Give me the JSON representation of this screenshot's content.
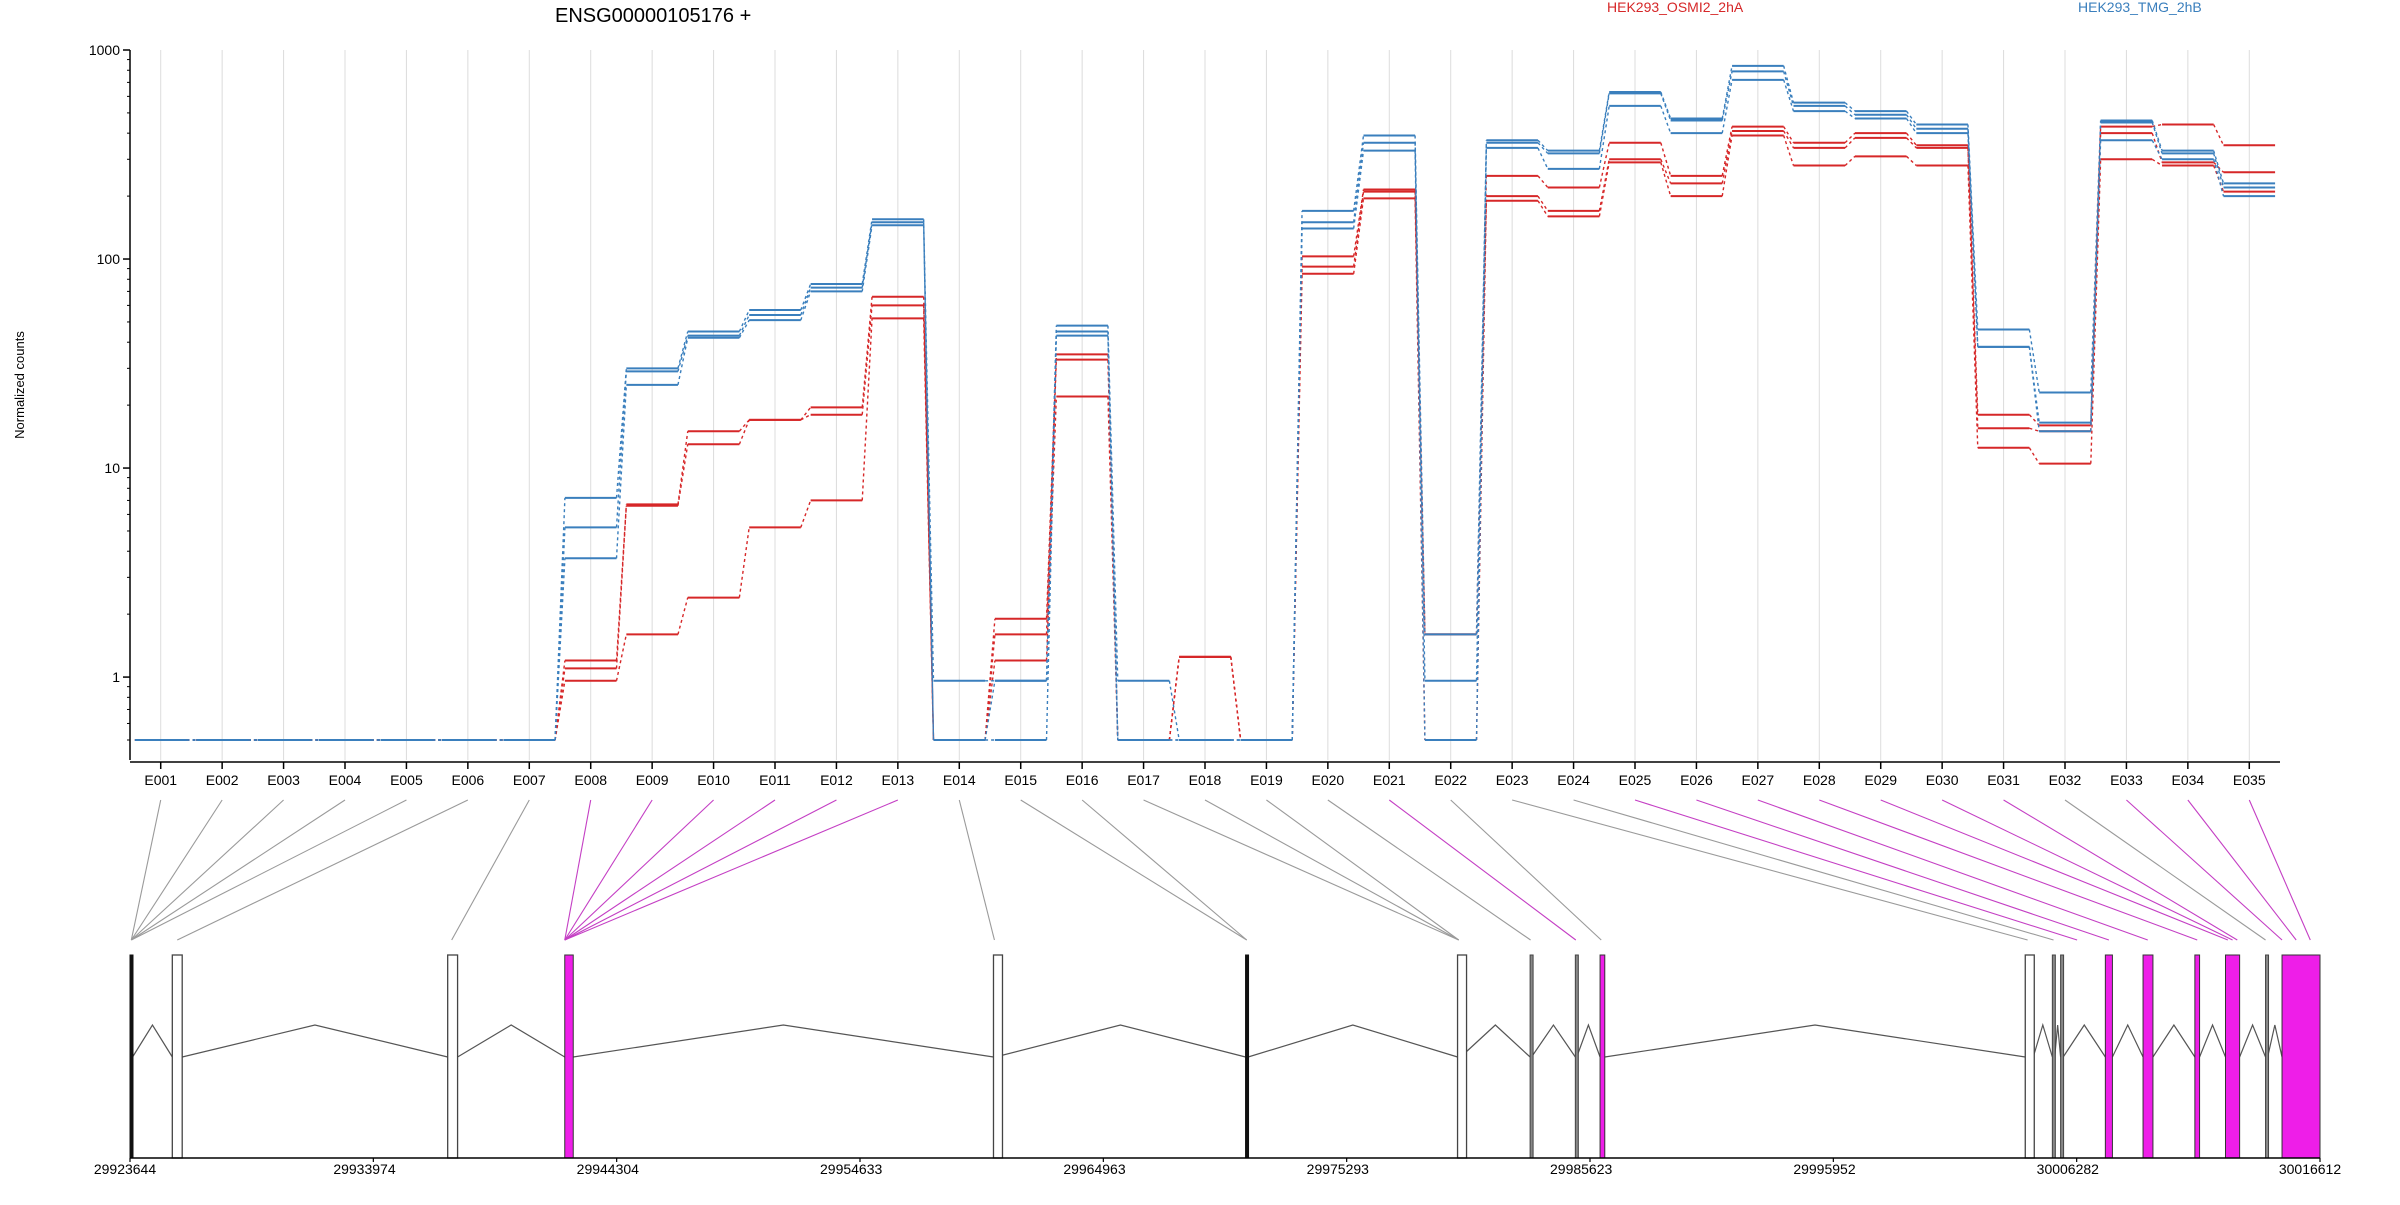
{
  "gene_title": "ENSG00000105176 +",
  "colors": {
    "osmi": "#d62728",
    "tmg": "#3a7fbd",
    "axis": "#000000",
    "grid": "#dcdcdc",
    "link_gray": "#9a9a9a",
    "link_magenta": "#c43fc4",
    "exon_magenta": "#ee1ee8"
  },
  "chart_data": {
    "type": "line",
    "title": "ENSG00000105176 +",
    "ylabel": "Normalized counts",
    "yscale": "log",
    "ylim": [
      0.5,
      1000
    ],
    "yticks": [
      {
        "label": "1000",
        "v": 1000
      },
      {
        "label": "100",
        "v": 100
      },
      {
        "label": "10",
        "v": 10
      },
      {
        "label": "1",
        "v": 1
      }
    ],
    "categories": [
      "E001",
      "E002",
      "E003",
      "E004",
      "E005",
      "E006",
      "E007",
      "E008",
      "E009",
      "E010",
      "E011",
      "E012",
      "E013",
      "E014",
      "E015",
      "E016",
      "E017",
      "E018",
      "E019",
      "E020",
      "E021",
      "E022",
      "E023",
      "E024",
      "E025",
      "E026",
      "E027",
      "E028",
      "E029",
      "E030",
      "E031",
      "E032",
      "E033",
      "E034",
      "E035"
    ],
    "grid": "vertical",
    "legend": [
      {
        "name": "HEK293_OSMI2_2hA",
        "color": "#d62728",
        "position": "top-center"
      },
      {
        "name": "HEK293_TMG_2hB",
        "color": "#3a7fbd",
        "position": "top-right"
      }
    ],
    "series": [
      {
        "group": "HEK293_TMG_2hB",
        "color": "#3a7fbd",
        "values": [
          0.5,
          0.5,
          0.5,
          0.5,
          0.5,
          0.5,
          0.5,
          7.2,
          30,
          45,
          57,
          76,
          155,
          0.96,
          0.96,
          48,
          0.96,
          0.5,
          0.5,
          170,
          390,
          0.96,
          370,
          330,
          630,
          470,
          840,
          560,
          510,
          440,
          46,
          23,
          460,
          330,
          230
        ]
      },
      {
        "group": "HEK293_TMG_2hB",
        "color": "#3a7fbd",
        "values": [
          0.5,
          0.5,
          0.5,
          0.5,
          0.5,
          0.5,
          0.5,
          5.2,
          29,
          43,
          54,
          73,
          150,
          0.5,
          0.96,
          45,
          0.5,
          0.5,
          0.5,
          150,
          360,
          1.6,
          360,
          320,
          620,
          460,
          790,
          540,
          490,
          420,
          38,
          16.5,
          450,
          320,
          220
        ]
      },
      {
        "group": "HEK293_TMG_2hB",
        "color": "#3a7fbd",
        "values": [
          0.5,
          0.5,
          0.5,
          0.5,
          0.5,
          0.5,
          0.5,
          3.7,
          25,
          42,
          51,
          70,
          145,
          0.5,
          0.5,
          43,
          0.5,
          0.5,
          0.5,
          140,
          330,
          0.5,
          340,
          270,
          540,
          400,
          720,
          510,
          470,
          400,
          38,
          15,
          370,
          300,
          200
        ]
      },
      {
        "group": "HEK293_OSMI2_2hA",
        "color": "#d62728",
        "values": [
          0.5,
          0.5,
          0.5,
          0.5,
          0.5,
          0.5,
          0.5,
          1.2,
          6.7,
          15,
          17,
          19.5,
          66,
          0.5,
          1.9,
          35,
          0.5,
          1.25,
          0.5,
          103,
          215,
          1.6,
          250,
          220,
          360,
          250,
          430,
          360,
          400,
          350,
          18,
          16,
          430,
          440,
          350
        ]
      },
      {
        "group": "HEK293_OSMI2_2hA",
        "color": "#d62728",
        "values": [
          0.5,
          0.5,
          0.5,
          0.5,
          0.5,
          0.5,
          0.5,
          1.1,
          6.6,
          13,
          17,
          18,
          60,
          0.5,
          1.6,
          33,
          0.5,
          1.25,
          0.5,
          92,
          210,
          1.6,
          200,
          170,
          300,
          230,
          410,
          340,
          380,
          340,
          15.5,
          15,
          400,
          290,
          260
        ]
      },
      {
        "group": "HEK293_OSMI2_2hA",
        "color": "#d62728",
        "values": [
          0.5,
          0.5,
          0.5,
          0.5,
          0.5,
          0.5,
          0.5,
          0.96,
          1.6,
          2.4,
          5.2,
          7,
          52,
          0.5,
          1.2,
          22,
          0.5,
          1.25,
          0.5,
          85,
          195,
          0.5,
          190,
          160,
          290,
          200,
          390,
          280,
          310,
          280,
          12.5,
          10.5,
          300,
          280,
          210
        ]
      }
    ]
  },
  "genome_axis": {
    "ticks": [
      "29923644",
      "29933974",
      "29944304",
      "29954633",
      "29964963",
      "29975293",
      "29985623",
      "29995952",
      "30006282",
      "30016612"
    ],
    "start": 29923644,
    "end": 30016612
  },
  "exon_blocks": [
    {
      "pos": 29923644,
      "len": 110,
      "highlight": false,
      "style": "thick"
    },
    {
      "pos": 29925440,
      "len": 420,
      "highlight": false,
      "style": "open"
    },
    {
      "pos": 29937130,
      "len": 420,
      "highlight": false,
      "style": "open"
    },
    {
      "pos": 29942100,
      "len": 360,
      "highlight": true,
      "style": "solid"
    },
    {
      "pos": 29960300,
      "len": 80,
      "highlight": false,
      "style": "open"
    },
    {
      "pos": 29971000,
      "len": 110,
      "highlight": false,
      "style": "thick"
    },
    {
      "pos": 29980000,
      "len": 130,
      "highlight": false,
      "style": "open"
    },
    {
      "pos": 29983080,
      "len": 60,
      "highlight": false,
      "style": "thin"
    },
    {
      "pos": 29985000,
      "len": 60,
      "highlight": false,
      "style": "thin"
    },
    {
      "pos": 29986050,
      "len": 200,
      "highlight": true,
      "style": "solid"
    },
    {
      "pos": 30004100,
      "len": 340,
      "highlight": false,
      "style": "open"
    },
    {
      "pos": 30005250,
      "len": 100,
      "highlight": false,
      "style": "thin"
    },
    {
      "pos": 30005600,
      "len": 110,
      "highlight": false,
      "style": "thin"
    },
    {
      "pos": 30007500,
      "len": 300,
      "highlight": true,
      "style": "solid"
    },
    {
      "pos": 30009100,
      "len": 420,
      "highlight": true,
      "style": "solid"
    },
    {
      "pos": 30011300,
      "len": 200,
      "highlight": true,
      "style": "solid"
    },
    {
      "pos": 30012600,
      "len": 600,
      "highlight": true,
      "style": "solid"
    },
    {
      "pos": 30014300,
      "len": 90,
      "highlight": false,
      "style": "thin"
    },
    {
      "pos": 30015000,
      "len": 1612,
      "highlight": true,
      "style": "solid"
    }
  ],
  "connectors": [
    {
      "pos": 29923700,
      "highlight": false
    },
    {
      "pos": 29923700,
      "highlight": false
    },
    {
      "pos": 29923700,
      "highlight": false
    },
    {
      "pos": 29923700,
      "highlight": false
    },
    {
      "pos": 29923700,
      "highlight": false
    },
    {
      "pos": 29925650,
      "highlight": false
    },
    {
      "pos": 29937300,
      "highlight": false
    },
    {
      "pos": 29942100,
      "highlight": true
    },
    {
      "pos": 29942100,
      "highlight": true
    },
    {
      "pos": 29942100,
      "highlight": true
    },
    {
      "pos": 29942100,
      "highlight": true
    },
    {
      "pos": 29942100,
      "highlight": true
    },
    {
      "pos": 29942100,
      "highlight": true
    },
    {
      "pos": 29960340,
      "highlight": false
    },
    {
      "pos": 29971050,
      "highlight": false
    },
    {
      "pos": 29971050,
      "highlight": false
    },
    {
      "pos": 29980050,
      "highlight": false
    },
    {
      "pos": 29980050,
      "highlight": false
    },
    {
      "pos": 29980050,
      "highlight": false
    },
    {
      "pos": 29983100,
      "highlight": false
    },
    {
      "pos": 29985020,
      "highlight": true
    },
    {
      "pos": 29986100,
      "highlight": false
    },
    {
      "pos": 30004200,
      "highlight": false
    },
    {
      "pos": 30005300,
      "highlight": false
    },
    {
      "pos": 30006300,
      "highlight": true
    },
    {
      "pos": 30007650,
      "highlight": true
    },
    {
      "pos": 30009300,
      "highlight": true
    },
    {
      "pos": 30011400,
      "highlight": true
    },
    {
      "pos": 30012700,
      "highlight": true
    },
    {
      "pos": 30012900,
      "highlight": true
    },
    {
      "pos": 30013100,
      "highlight": true
    },
    {
      "pos": 30014300,
      "highlight": false
    },
    {
      "pos": 30015000,
      "highlight": true
    },
    {
      "pos": 30015600,
      "highlight": true
    },
    {
      "pos": 30016200,
      "highlight": true
    }
  ]
}
